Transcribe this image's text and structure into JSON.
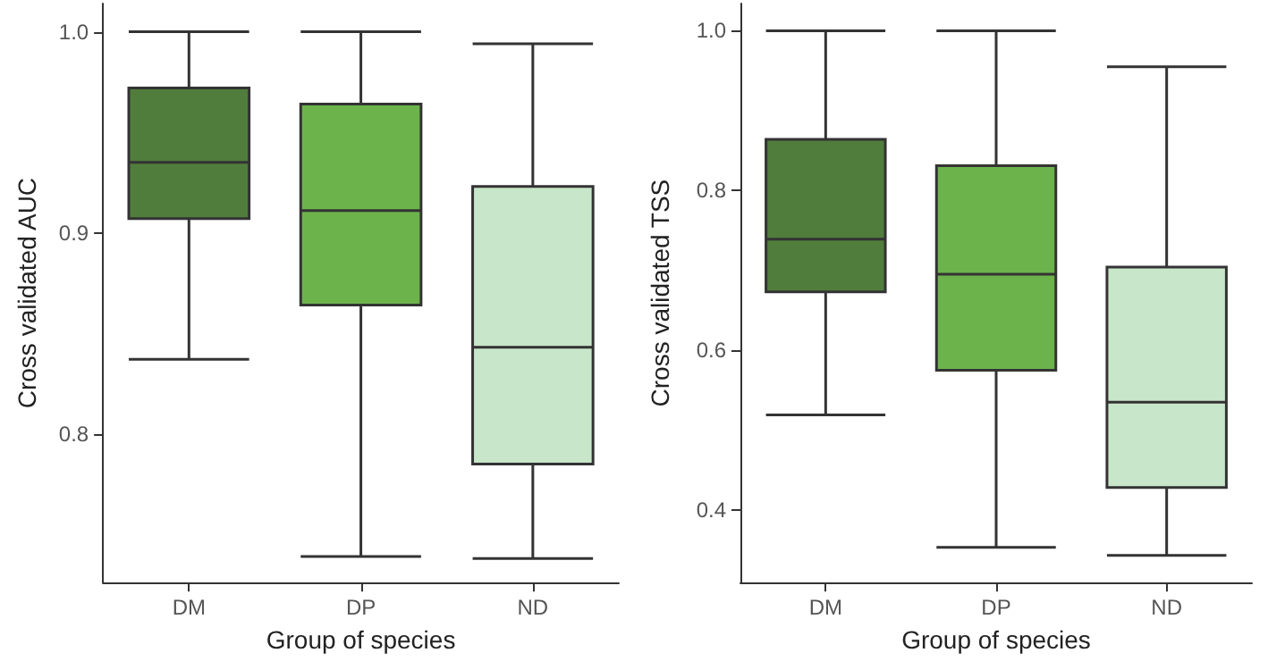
{
  "chart_data": [
    {
      "type": "box",
      "xlabel": "Group of species",
      "ylabel": "Cross validated AUC",
      "categories": [
        "DM",
        "DP",
        "ND"
      ],
      "colors": [
        "#507d3c",
        "#6db34c",
        "#c8e6c9"
      ],
      "boxes": [
        {
          "low": 0.837,
          "q1": 0.907,
          "median": 0.935,
          "q3": 0.972,
          "high": 1.0
        },
        {
          "low": 0.739,
          "q1": 0.864,
          "median": 0.911,
          "q3": 0.964,
          "high": 1.0
        },
        {
          "low": 0.738,
          "q1": 0.785,
          "median": 0.843,
          "q3": 0.923,
          "high": 0.994
        }
      ],
      "ylim": [
        0.726,
        1.014
      ],
      "yticks": [
        0.8,
        0.9,
        {
          "value": 1.0,
          "label": "1.0"
        }
      ],
      "grid": false
    },
    {
      "type": "box",
      "xlabel": "Group of species",
      "ylabel": "Cross validated TSS",
      "categories": [
        "DM",
        "DP",
        "ND"
      ],
      "colors": [
        "#507d3c",
        "#6db34c",
        "#c8e6c9"
      ],
      "boxes": [
        {
          "low": 0.519,
          "q1": 0.673,
          "median": 0.739,
          "q3": 0.864,
          "high": 1.0
        },
        {
          "low": 0.353,
          "q1": 0.575,
          "median": 0.695,
          "q3": 0.831,
          "high": 1.0
        },
        {
          "low": 0.343,
          "q1": 0.428,
          "median": 0.535,
          "q3": 0.704,
          "high": 0.955
        }
      ],
      "ylim": [
        0.309,
        1.034
      ],
      "yticks": [
        0.4,
        0.6,
        0.8,
        {
          "value": 1.0,
          "label": "1.0"
        }
      ],
      "grid": false
    }
  ]
}
